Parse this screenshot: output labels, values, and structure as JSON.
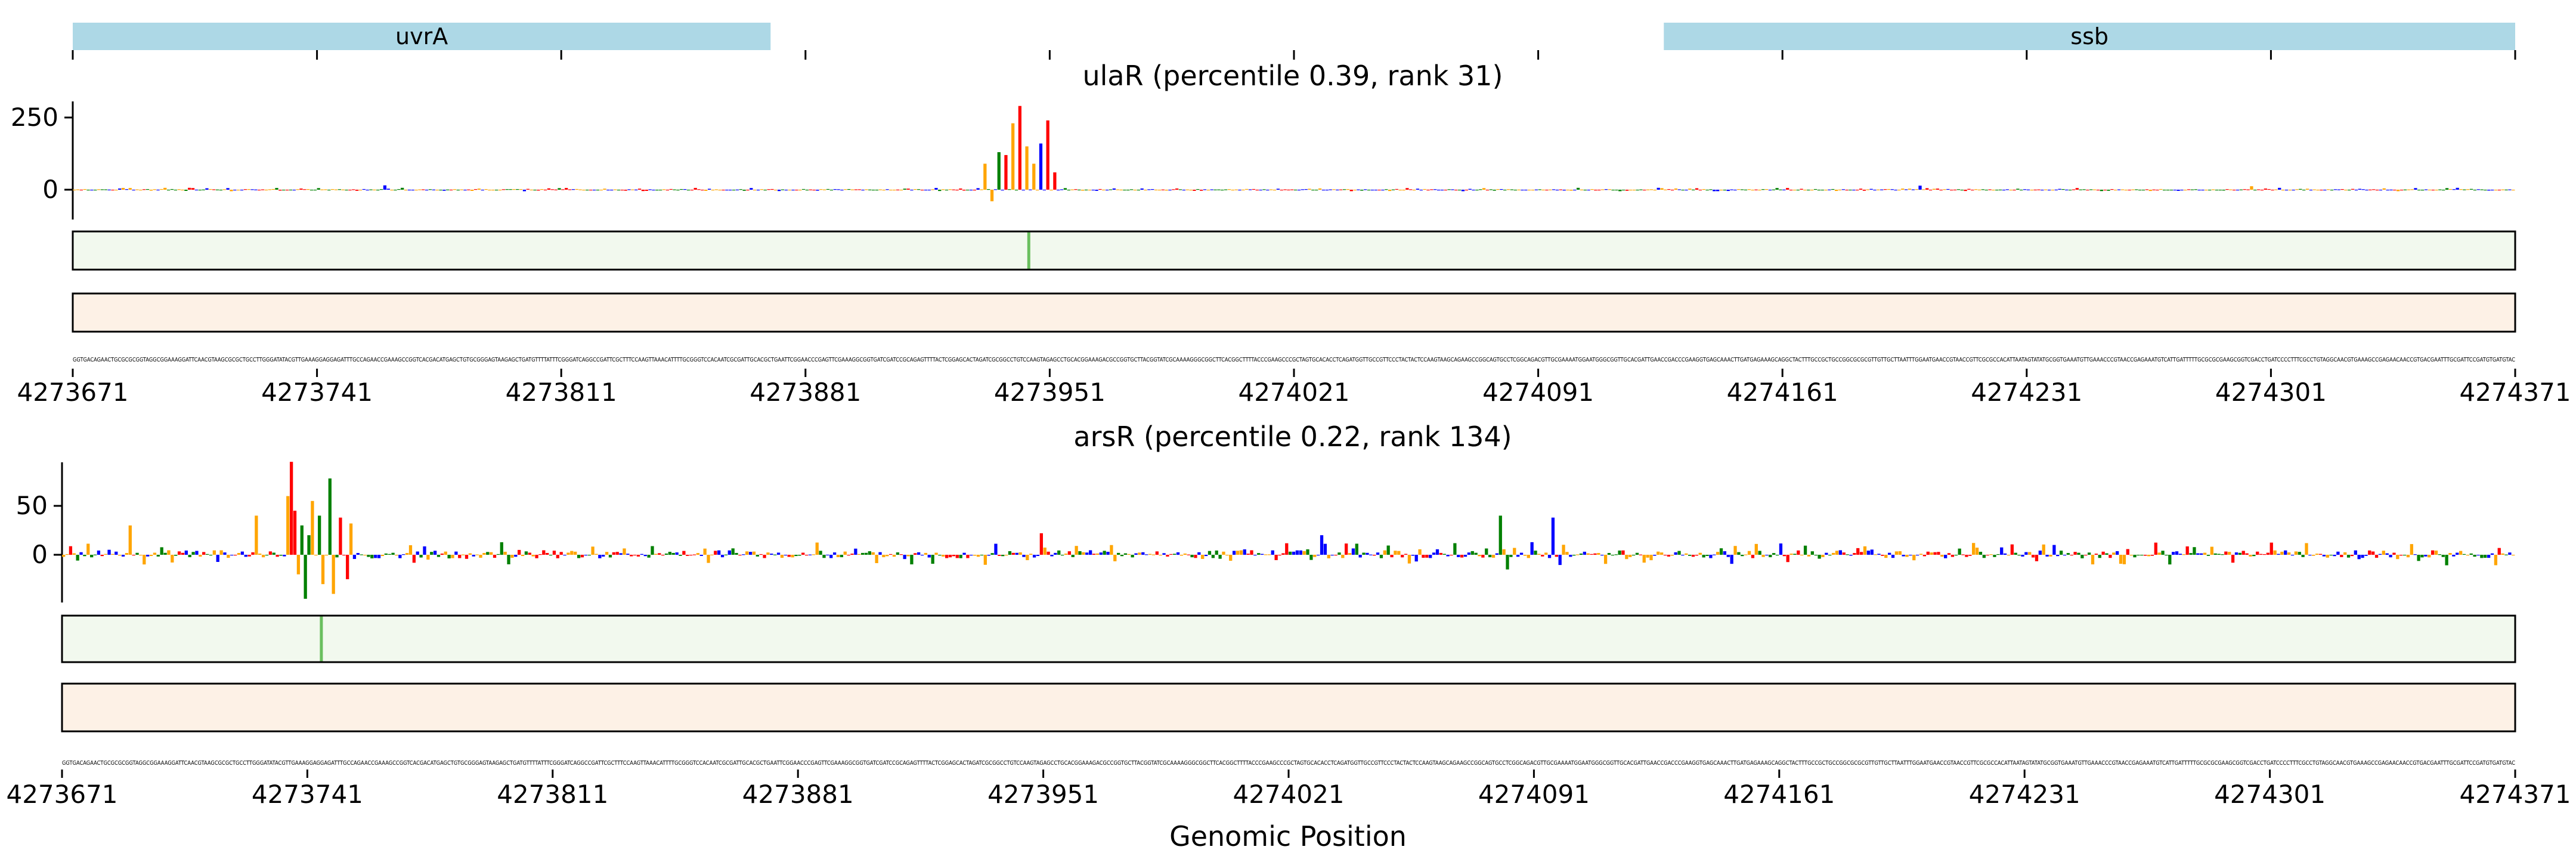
{
  "figure": {
    "xlabel": "Genomic Position"
  },
  "colors": {
    "gene_track": "#add8e6",
    "heat_green_bg": "#f2f9ee",
    "heat_green_peak": "#6abf5e",
    "heat_orange_bg": "#fdf1e6",
    "base_A": "#008000",
    "base_C": "#0000ff",
    "base_G": "#ffa500",
    "base_T": "#ff0000"
  },
  "chart_data": [
    {
      "type": "gene_track",
      "x_range": [
        4273671,
        4274371
      ],
      "genes": [
        {
          "name": "uvrA",
          "start": 4273671,
          "end": 4273871
        },
        {
          "name": "ssb",
          "start": 4274127,
          "end": 4274371
        }
      ],
      "xticks": [
        4273671,
        4273741,
        4273811,
        4273881,
        4273951,
        4274021,
        4274091,
        4274161,
        4274231,
        4274301,
        4274371
      ]
    },
    {
      "type": "sequence_logo",
      "title": "ulaR (percentile 0.39, rank 31)",
      "x_range": [
        4273671,
        4274371
      ],
      "ylim": [
        -45,
        310
      ],
      "yticks": [
        0,
        250
      ],
      "xticks": [
        4273671,
        4273741,
        4273811,
        4273881,
        4273951,
        4274021,
        4274091,
        4274161,
        4274231,
        4274301,
        4274371
      ],
      "peaks": [
        {
          "pos": 4273932,
          "value": 90
        },
        {
          "pos": 4273934,
          "value": -40
        },
        {
          "pos": 4273936,
          "value": 130
        },
        {
          "pos": 4273938,
          "value": 120
        },
        {
          "pos": 4273940,
          "value": 230
        },
        {
          "pos": 4273942,
          "value": 290
        },
        {
          "pos": 4273944,
          "value": 150
        },
        {
          "pos": 4273946,
          "value": 90
        },
        {
          "pos": 4273948,
          "value": 160
        },
        {
          "pos": 4273950,
          "value": 240
        },
        {
          "pos": 4273952,
          "value": 60
        },
        {
          "pos": 4273760,
          "value": 15
        },
        {
          "pos": 4274200,
          "value": 14
        },
        {
          "pos": 4274295,
          "value": 12
        }
      ],
      "noise_amplitude": 6,
      "heatmap_green_peak": 4273945,
      "sequence": "GGTGACAGAACTGCGCGCGGTAGGCGGAAAGGATTCAACGTAAGCGCGCTGCCTTGGGATATACGTTGAAAGGAGGAGATTTGCCAGAACCGAAAGCCGGTCACGACATGAGCTGTGCGGGAGTAAGAGCTGATGTTTTATTTCGGGATCAGGCCGATTCGCTTTCCAAGTTAAACATTTTGCGGGTCCACAATCGCGATTGCACGCTGAATTCGGAACCCGAGTTCGAAAGGCGGTGATCGATCCGCAGAGTTTTACTCGGAGCACTAGATCGCGGCCTGTCCAAGTAGAGCCTGCACGGAAAGACGCCGGTGCTTACGGTATCGCAAAAGGGCGGCTTCACGGCTTTTACCCGAAGCCCGCTAGTGCACACCTCAGATGGTTGCCGTTCCCTACTACTCCAAGTAAGCAGAAGCCGGCAGTGCCTCGGCAGACGTTGCGAAAATGGAATGGGCGGTTGCACGATTGAACCGACCCGAAGGTGAGCAAACTTGATGAGAAAGCAGGCTACTTTGCCGCTGCCGGCGCGCGTTGTTGCTTAATTTGGAATGAACCGTAACCGTTCGCGCCACATTAATAGTATATGCGGTGAAATGTTGAAACCCGTAACCGAGAAATGTCATTGATTTTTGCGCGCGAAGCGGTCGACCTGATCCCCTTTCGCCTGTAGGCAACGTGAAAGCCGAGAACAACCGTGACGAATTTGCGATTCCGATGTGATGTAC"
    },
    {
      "type": "sequence_logo",
      "title": "arsR (percentile 0.22, rank 134)",
      "x_range": [
        4273671,
        4274371
      ],
      "ylim": [
        -55,
        95
      ],
      "yticks": [
        0,
        50
      ],
      "xticks": [
        4273671,
        4273741,
        4273811,
        4273881,
        4273951,
        4274021,
        4274091,
        4274161,
        4274231,
        4274301,
        4274371
      ],
      "peaks": [
        {
          "pos": 4273735,
          "value": 60
        },
        {
          "pos": 4273736,
          "value": 95
        },
        {
          "pos": 4273737,
          "value": 45
        },
        {
          "pos": 4273738,
          "value": -20
        },
        {
          "pos": 4273739,
          "value": 30
        },
        {
          "pos": 4273740,
          "value": -45
        },
        {
          "pos": 4273741,
          "value": 20
        },
        {
          "pos": 4273742,
          "value": 55
        },
        {
          "pos": 4273744,
          "value": 40
        },
        {
          "pos": 4273745,
          "value": -30
        },
        {
          "pos": 4273747,
          "value": 78
        },
        {
          "pos": 4273748,
          "value": -40
        },
        {
          "pos": 4273750,
          "value": 38
        },
        {
          "pos": 4273752,
          "value": -25
        },
        {
          "pos": 4273753,
          "value": 32
        },
        {
          "pos": 4273726,
          "value": 40
        },
        {
          "pos": 4273690,
          "value": 30
        },
        {
          "pos": 4274081,
          "value": 40
        },
        {
          "pos": 4274083,
          "value": -15
        },
        {
          "pos": 4274096,
          "value": 38
        },
        {
          "pos": 4274030,
          "value": 20
        },
        {
          "pos": 4273950,
          "value": 22
        }
      ],
      "noise_amplitude": 12,
      "heatmap_green_peak": 4273745,
      "sequence": "GGTGACAGAACTGCGCGCGGTAGGCGGAAAGGATTCAACGTAAGCGCGCTGCCTTGGGATATACGTTGAAAGGAGGAGATTTGCCAGAACCGAAAGCCGGTCACGACATGAGCTGTGCGGGAGTAAGAGCTGATGTTTTATTTCGGGATCAGGCCGATTCGCTTTCCAAGTTAAACATTTTGCGGGTCCACAATCGCGATTGCACGCTGAATTCGGAACCCGAGTTCGAAAGGCGGTGATCGATCCGCAGAGTTTTACTCGGAGCACTAGATCGCGGCCTGTCCAAGTAGAGCCTGCACGGAAAGACGCCGGTGCTTACGGTATCGCAAAAGGGCGGCTTCACGGCTTTTACCCGAAGCCCGCTAGTGCACACCTCAGATGGTTGCCGTTCCCTACTACTCCAAGTAAGCAGAAGCCGGCAGTGCCTCGGCAGACGTTGCGAAAATGGAATGGGCGGTTGCACGATTGAACCGACCCGAAGGTGAGCAAACTTGATGAGAAAGCAGGCTACTTTGCCGCTGCCGGCGCGCGTTGTTGCTTAATTTGGAATGAACCGTAACCGTTCGCGCCACATTAATAGTATATGCGGTGAAATGTTGAAACCCGTAACCGAGAAATGTCATTGATTTTTGCGCGCGAAGCGGTCGACCTGATCCCCTTTCGCCTGTAGGCAACGTGAAAGCCGAGAACAACCGTGACGAATTTGCGATTCCGATGTGATGTAC"
    }
  ]
}
